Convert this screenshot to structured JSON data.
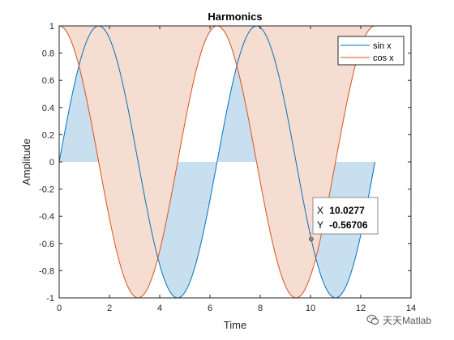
{
  "chart_data": {
    "type": "line",
    "title": "Harmonics",
    "xlabel": "Time",
    "ylabel": "Amplitude",
    "xlim": [
      0,
      14
    ],
    "ylim": [
      -1,
      1
    ],
    "xticks": [
      "0",
      "2",
      "4",
      "6",
      "8",
      "10",
      "12",
      "14"
    ],
    "yticks": [
      "-1",
      "-0.8",
      "-0.6",
      "-0.4",
      "-0.2",
      "0",
      "0.2",
      "0.4",
      "0.6",
      "0.8",
      "1"
    ],
    "grid": false,
    "legend_position": "top-right",
    "x_range": [
      0,
      12.566
    ],
    "series": [
      {
        "name": "sin x",
        "function": "sin(x)",
        "color": "#0072BD",
        "fill": "#C8DFEF"
      },
      {
        "name": "cos x",
        "function": "cos(x)",
        "color": "#D95319",
        "fill": "#F6DDD2"
      }
    ],
    "datatip": {
      "x": 10.0277,
      "y": -0.56706,
      "x_label": "X",
      "y_label": "Y",
      "x_text": "10.0277",
      "y_text": "-0.56706"
    }
  },
  "watermark": {
    "text": "天天Matlab"
  }
}
